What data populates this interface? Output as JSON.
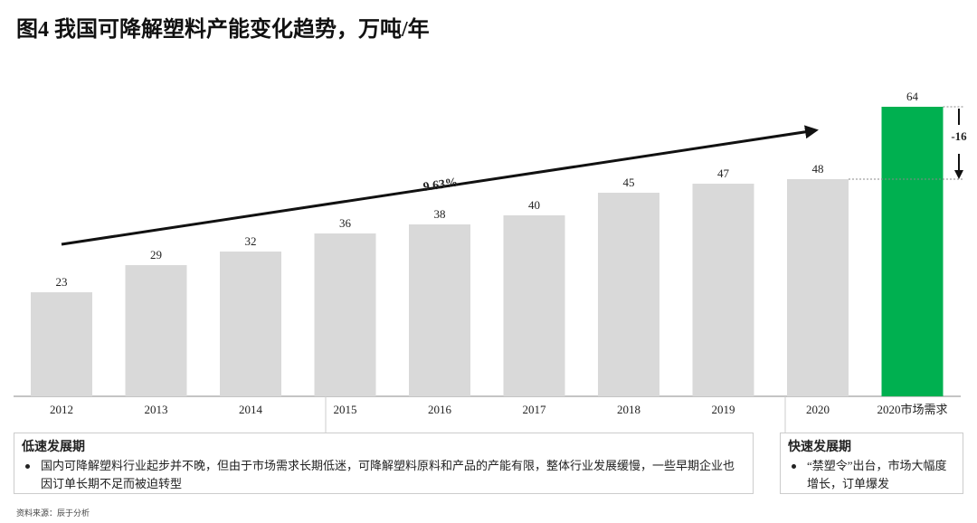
{
  "chart_data": {
    "type": "bar",
    "title": "图4 我国可降解塑料产能变化趋势，万吨/年",
    "categories": [
      "2012",
      "2013",
      "2014",
      "2015",
      "2016",
      "2017",
      "2018",
      "2019",
      "2020",
      "2020市场需求"
    ],
    "values": [
      23,
      29,
      32,
      36,
      38,
      40,
      45,
      47,
      48,
      64
    ],
    "colors": [
      "#d9d9d9",
      "#d9d9d9",
      "#d9d9d9",
      "#d9d9d9",
      "#d9d9d9",
      "#d9d9d9",
      "#d9d9d9",
      "#d9d9d9",
      "#d9d9d9",
      "#00b050"
    ],
    "growth_label": "9.63%",
    "gap": -16,
    "phases": [
      {
        "title": "低速发展期",
        "text": "国内可降解塑料行业起步并不晚，但由于市场需求长期低迷，可降解塑料原料和产品的产能有限，整体行业发展缓慢，一些早期企业也因订单长期不足而被迫转型"
      },
      {
        "title": "快速发展期",
        "text": "“禁塑令”出台，市场大幅度增长，订单爆发"
      }
    ],
    "source": "资料来源：辰于分析"
  }
}
